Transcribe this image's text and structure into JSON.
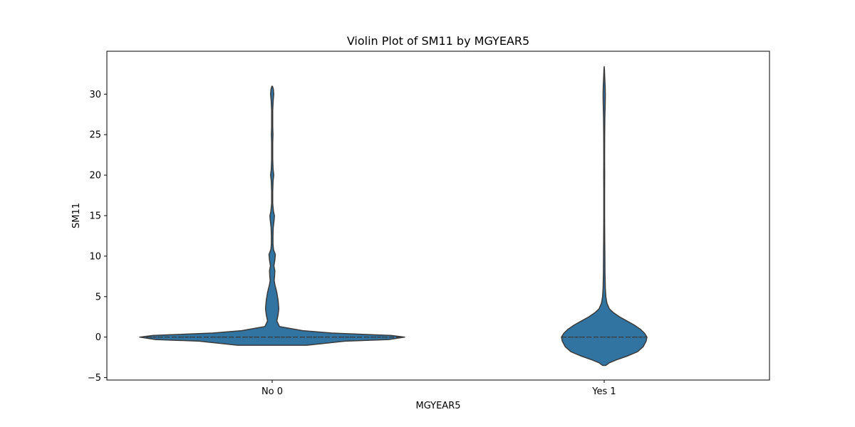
{
  "chart_data": {
    "type": "violin",
    "title": "Violin Plot of SM11 by MGYEAR5",
    "xlabel": "MGYEAR5",
    "ylabel": "SM11",
    "categories": [
      "No 0",
      "Yes 1"
    ],
    "ylim": [
      -5.3,
      35.3
    ],
    "yticks": [
      -5,
      0,
      5,
      10,
      15,
      20,
      25,
      30
    ],
    "ytick_labels": [
      "−5",
      "0",
      "5",
      "10",
      "15",
      "20",
      "25",
      "30"
    ],
    "grid": false,
    "legend": "none",
    "colors": {
      "fill": "#3274a1",
      "edge": "#3a3a3a",
      "axis": "#000000",
      "background": "#ffffff"
    },
    "inner": "quartile",
    "violins": [
      {
        "category": "No 0",
        "quartiles": [
          0,
          0,
          0
        ],
        "profile": [
          [
            -1.0,
            0.26
          ],
          [
            -0.5,
            0.55
          ],
          [
            -0.3,
            0.88
          ],
          [
            0.0,
            1.0
          ],
          [
            0.2,
            0.9
          ],
          [
            0.5,
            0.45
          ],
          [
            0.8,
            0.23
          ],
          [
            1.3,
            0.055
          ],
          [
            2.0,
            0.035
          ],
          [
            2.8,
            0.045
          ],
          [
            3.5,
            0.05
          ],
          [
            4.5,
            0.045
          ],
          [
            5.5,
            0.035
          ],
          [
            6.5,
            0.02
          ],
          [
            7.0,
            0.015
          ],
          [
            7.5,
            0.018
          ],
          [
            8.2,
            0.02
          ],
          [
            8.8,
            0.013
          ],
          [
            9.5,
            0.02
          ],
          [
            10.2,
            0.024
          ],
          [
            10.8,
            0.01
          ],
          [
            11.5,
            0.006
          ],
          [
            12.5,
            0.006
          ],
          [
            13.5,
            0.008
          ],
          [
            14.5,
            0.015
          ],
          [
            15.0,
            0.017
          ],
          [
            15.5,
            0.01
          ],
          [
            16.5,
            0.004
          ],
          [
            18.0,
            0.004
          ],
          [
            19.3,
            0.007
          ],
          [
            20.0,
            0.012
          ],
          [
            20.7,
            0.007
          ],
          [
            22.0,
            0.004
          ],
          [
            24.0,
            0.004
          ],
          [
            25.0,
            0.006
          ],
          [
            26.0,
            0.004
          ],
          [
            28.0,
            0.004
          ],
          [
            29.3,
            0.008
          ],
          [
            30.0,
            0.012
          ],
          [
            30.6,
            0.009
          ],
          [
            30.9,
            0.004
          ],
          [
            31.0,
            0.0
          ]
        ]
      },
      {
        "category": "Yes 1",
        "quartiles": [
          0,
          0,
          0
        ],
        "profile": [
          [
            -3.5,
            0.035
          ],
          [
            -3.2,
            0.11
          ],
          [
            -2.8,
            0.29
          ],
          [
            -2.3,
            0.56
          ],
          [
            -1.8,
            0.78
          ],
          [
            -1.2,
            0.91
          ],
          [
            -0.5,
            0.98
          ],
          [
            0.0,
            1.0
          ],
          [
            0.5,
            0.94
          ],
          [
            1.0,
            0.84
          ],
          [
            1.5,
            0.7
          ],
          [
            2.0,
            0.53
          ],
          [
            2.5,
            0.36
          ],
          [
            3.0,
            0.22
          ],
          [
            3.5,
            0.12
          ],
          [
            4.2,
            0.063
          ],
          [
            5.0,
            0.038
          ],
          [
            6.0,
            0.026
          ],
          [
            8.0,
            0.018
          ],
          [
            10.0,
            0.016
          ],
          [
            12.0,
            0.012
          ],
          [
            15.0,
            0.009
          ],
          [
            18.0,
            0.009
          ],
          [
            20.0,
            0.011
          ],
          [
            22.0,
            0.009
          ],
          [
            25.0,
            0.011
          ],
          [
            27.0,
            0.015
          ],
          [
            29.0,
            0.024
          ],
          [
            30.0,
            0.026
          ],
          [
            31.0,
            0.022
          ],
          [
            32.0,
            0.013
          ],
          [
            33.0,
            0.006
          ],
          [
            33.4,
            0.0
          ]
        ]
      }
    ]
  }
}
